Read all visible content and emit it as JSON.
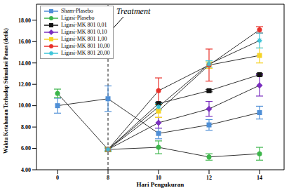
{
  "chart_data": {
    "type": "line",
    "x_label": "Hari Pengukuran",
    "y_label": "Waktu Ketahanan Terhadap Stimulasi Panas (detik)",
    "categories": [
      "0",
      "8",
      "10",
      "12",
      "14"
    ],
    "ylim": [
      4,
      19.5
    ],
    "yticks": [
      {
        "value": 4,
        "label": "4.00"
      },
      {
        "value": 6,
        "label": "6.00"
      },
      {
        "value": 8,
        "label": "8.00"
      },
      {
        "value": 10,
        "label": "10.00"
      },
      {
        "value": 12,
        "label": "12.00"
      },
      {
        "value": 14,
        "label": "14.00"
      },
      {
        "value": 16,
        "label": "16.00"
      },
      {
        "value": 18,
        "label": "18.00"
      }
    ],
    "legend": "upper left",
    "annotations": [
      {
        "text": "Treatment",
        "x": "8"
      }
    ],
    "series": [
      {
        "name": "Sham-Plasebo",
        "color": "#4f8fd6",
        "marker": "square",
        "values": [
          10.0,
          10.65,
          7.4,
          8.2,
          9.35
        ],
        "errors": [
          0.7,
          1.2,
          0.5,
          0.5,
          0.6
        ]
      },
      {
        "name": "Ligasi-Plasebo",
        "color": "#3cb54a",
        "marker": "circle",
        "values": [
          11.15,
          5.9,
          6.1,
          5.2,
          5.5
        ],
        "errors": [
          0.4,
          0.2,
          0.6,
          0.3,
          0.6
        ]
      },
      {
        "name": "Ligasi-MK 801 0,01",
        "color": "#111111",
        "marker": "square",
        "values": [
          null,
          5.9,
          10.2,
          11.4,
          12.9
        ],
        "errors": [
          null,
          0.1,
          0.1,
          0.1,
          0.1
        ]
      },
      {
        "name": "Ligasi-MK 801 0,10",
        "color": "#7b2fbf",
        "marker": "diamond",
        "values": [
          null,
          5.9,
          8.4,
          9.7,
          11.9
        ],
        "errors": [
          null,
          0.1,
          0.5,
          0.7,
          1.0
        ]
      },
      {
        "name": "Ligasi-MK 801 1,00",
        "color": "#f5d327",
        "marker": "square",
        "values": [
          null,
          5.9,
          9.5,
          13.8,
          14.7
        ],
        "errors": [
          null,
          0.1,
          0.6,
          0.3,
          0.7
        ]
      },
      {
        "name": "Ligasi-MK 801 10,00",
        "color": "#e8312a",
        "marker": "circle",
        "values": [
          null,
          5.9,
          11.4,
          13.8,
          17.1
        ],
        "errors": [
          null,
          0.1,
          1.2,
          1.5,
          0.3
        ]
      },
      {
        "name": "Ligasi-MK 801 20,00",
        "color": "#3cc4d8",
        "marker": "star",
        "values": [
          null,
          5.9,
          9.9,
          13.9,
          16.1
        ],
        "errors": [
          null,
          0.1,
          0.3,
          0.3,
          0.7
        ]
      }
    ]
  }
}
